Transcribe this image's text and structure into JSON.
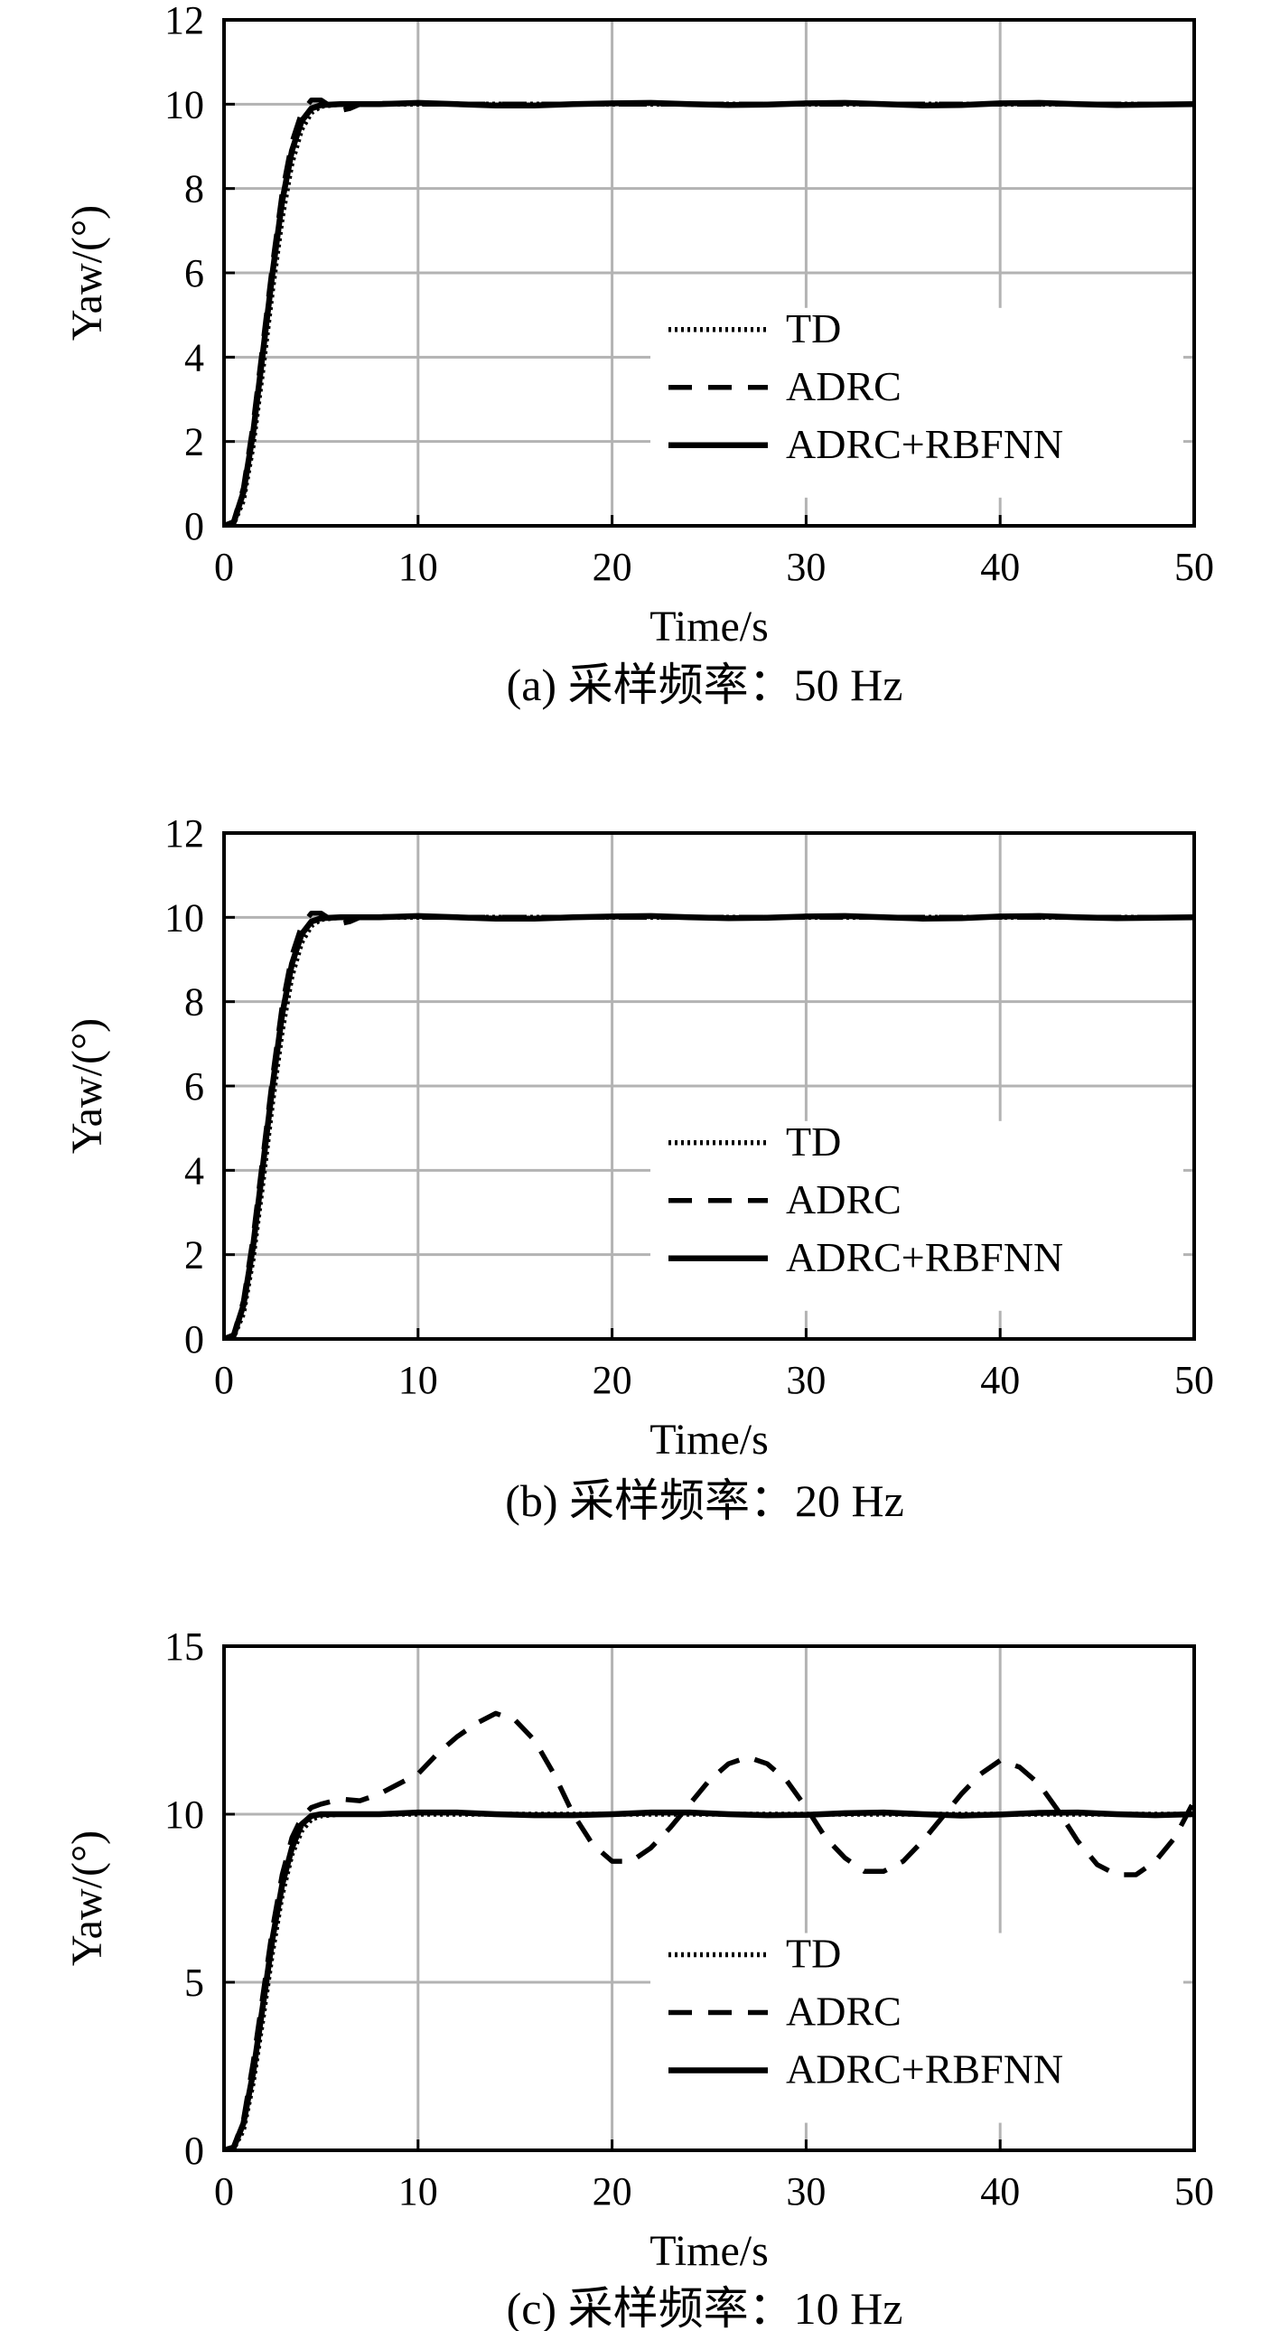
{
  "figure": {
    "legend": [
      "TD",
      "ADRC",
      "ADRC+RBFNN"
    ],
    "style": {
      "axis_color": "#000000",
      "grid_color": "#b3b3b3",
      "series_colors": {
        "td": "#000000",
        "adrc": "#000000",
        "adrc_rbfnn": "#000000"
      },
      "line_styles": {
        "td": "dotted",
        "adrc": "dashed",
        "adrc_rbfnn": "solid"
      }
    }
  },
  "chart_data": [
    {
      "type": "line",
      "caption": "(a) 采样频率：50 Hz",
      "xlabel": "Time/s",
      "ylabel": "Yaw/(°)",
      "xlim": [
        0,
        50
      ],
      "ylim": [
        0,
        12
      ],
      "xticks": [
        0,
        10,
        20,
        30,
        40,
        50
      ],
      "yticks": [
        0,
        2,
        4,
        6,
        8,
        10,
        12
      ],
      "grid": true,
      "legend_position": "bottom-right",
      "series": [
        {
          "name": "TD",
          "style": "dotted",
          "x": [
            0,
            0.5,
            1,
            1.5,
            2,
            2.5,
            3,
            3.5,
            4,
            4.5,
            5,
            6,
            8,
            10,
            15,
            20,
            25,
            30,
            35,
            40,
            45,
            50
          ],
          "y": [
            0,
            0.05,
            0.6,
            1.9,
            3.7,
            5.6,
            7.3,
            8.6,
            9.4,
            9.8,
            9.95,
            10.0,
            10.0,
            10.0,
            10.0,
            10.0,
            10.0,
            10.0,
            10.0,
            10.0,
            10.0,
            10.0
          ]
        },
        {
          "name": "ADRC",
          "style": "dashed",
          "x": [
            0,
            0.5,
            1,
            1.5,
            2,
            2.5,
            3,
            3.5,
            4,
            4.5,
            5,
            5.5,
            6,
            6.5,
            7,
            8,
            10,
            15,
            20,
            25,
            30,
            35,
            40,
            45,
            50
          ],
          "y": [
            0,
            0.1,
            0.9,
            2.4,
            4.3,
            6.2,
            7.9,
            9.1,
            9.8,
            10.1,
            10.1,
            9.95,
            9.85,
            9.9,
            10.0,
            10.02,
            10.0,
            10.0,
            10.0,
            10.0,
            10.0,
            10.0,
            10.0,
            10.0,
            10.0
          ]
        },
        {
          "name": "ADRC+RBFNN",
          "style": "solid",
          "x": [
            0,
            0.5,
            1,
            1.5,
            2,
            2.5,
            3,
            3.5,
            4,
            4.5,
            5,
            6,
            8,
            10,
            12,
            14,
            16,
            18,
            20,
            22,
            24,
            26,
            28,
            30,
            32,
            34,
            36,
            38,
            40,
            42,
            44,
            46,
            48,
            50
          ],
          "y": [
            0,
            0.08,
            0.8,
            2.2,
            4.1,
            6.0,
            7.7,
            8.9,
            9.6,
            9.9,
            9.98,
            10.0,
            10.0,
            10.03,
            10.0,
            9.97,
            9.97,
            10.0,
            10.02,
            10.03,
            10.0,
            9.98,
            9.99,
            10.02,
            10.03,
            10.0,
            9.97,
            9.98,
            10.02,
            10.03,
            10.0,
            9.98,
            9.99,
            10.0
          ]
        }
      ]
    },
    {
      "type": "line",
      "caption": "(b) 采样频率：20 Hz",
      "xlabel": "Time/s",
      "ylabel": "Yaw/(°)",
      "xlim": [
        0,
        50
      ],
      "ylim": [
        0,
        12
      ],
      "xticks": [
        0,
        10,
        20,
        30,
        40,
        50
      ],
      "yticks": [
        0,
        2,
        4,
        6,
        8,
        10,
        12
      ],
      "grid": true,
      "legend_position": "bottom-right",
      "series": [
        {
          "name": "TD",
          "style": "dotted",
          "x": [
            0,
            0.5,
            1,
            1.5,
            2,
            2.5,
            3,
            3.5,
            4,
            4.5,
            5,
            6,
            8,
            10,
            15,
            20,
            25,
            30,
            35,
            40,
            45,
            50
          ],
          "y": [
            0,
            0.05,
            0.6,
            1.9,
            3.7,
            5.6,
            7.3,
            8.6,
            9.4,
            9.8,
            9.95,
            10.0,
            10.0,
            10.0,
            10.0,
            10.0,
            10.0,
            10.0,
            10.0,
            10.0,
            10.0,
            10.0
          ]
        },
        {
          "name": "ADRC",
          "style": "dashed",
          "x": [
            0,
            0.5,
            1,
            1.5,
            2,
            2.5,
            3,
            3.5,
            4,
            4.5,
            5,
            5.5,
            6,
            6.5,
            7,
            8,
            10,
            15,
            20,
            25,
            30,
            35,
            40,
            45,
            50
          ],
          "y": [
            0,
            0.1,
            0.9,
            2.4,
            4.3,
            6.2,
            7.9,
            9.1,
            9.8,
            10.1,
            10.1,
            9.95,
            9.85,
            9.9,
            10.0,
            10.02,
            10.0,
            10.0,
            10.0,
            10.0,
            10.0,
            10.0,
            10.0,
            10.0,
            10.0
          ]
        },
        {
          "name": "ADRC+RBFNN",
          "style": "solid",
          "x": [
            0,
            0.5,
            1,
            1.5,
            2,
            2.5,
            3,
            3.5,
            4,
            4.5,
            5,
            6,
            8,
            10,
            12,
            14,
            16,
            18,
            20,
            22,
            24,
            26,
            28,
            30,
            32,
            34,
            36,
            38,
            40,
            42,
            44,
            46,
            48,
            50
          ],
          "y": [
            0,
            0.08,
            0.8,
            2.2,
            4.1,
            6.0,
            7.7,
            8.9,
            9.6,
            9.9,
            9.98,
            10.0,
            10.0,
            10.03,
            10.0,
            9.97,
            9.97,
            10.0,
            10.02,
            10.03,
            10.0,
            9.98,
            9.99,
            10.02,
            10.03,
            10.0,
            9.97,
            9.98,
            10.02,
            10.03,
            10.0,
            9.98,
            9.99,
            10.0
          ]
        }
      ]
    },
    {
      "type": "line",
      "caption": "(c) 采样频率：10 Hz",
      "xlabel": "Time/s",
      "ylabel": "Yaw/(°)",
      "xlim": [
        0,
        50
      ],
      "ylim": [
        0,
        15
      ],
      "xticks": [
        0,
        10,
        20,
        30,
        40,
        50
      ],
      "yticks": [
        0,
        5,
        10,
        15
      ],
      "grid": true,
      "legend_position": "bottom-right",
      "series": [
        {
          "name": "TD",
          "style": "dotted",
          "x": [
            0,
            0.5,
            1,
            1.5,
            2,
            2.5,
            3,
            3.5,
            4,
            4.5,
            5,
            6,
            8,
            10,
            15,
            20,
            25,
            30,
            35,
            40,
            45,
            50
          ],
          "y": [
            0,
            0.05,
            0.6,
            2.0,
            3.9,
            5.9,
            7.6,
            8.8,
            9.5,
            9.85,
            9.95,
            10.0,
            10.0,
            10.0,
            10.0,
            10.0,
            10.0,
            10.0,
            10.0,
            10.0,
            10.0,
            10.0
          ]
        },
        {
          "name": "ADRC",
          "style": "dashed",
          "x": [
            0,
            0.5,
            1,
            1.5,
            2,
            2.5,
            3,
            3.5,
            4,
            4.5,
            5,
            6,
            7,
            8,
            9,
            10,
            11,
            12,
            13,
            14,
            15,
            16,
            17,
            18,
            19,
            20,
            21,
            22,
            23,
            24,
            25,
            26,
            27,
            28,
            29,
            30,
            31,
            32,
            33,
            34,
            35,
            36,
            37,
            38,
            39,
            40,
            41,
            42,
            43,
            44,
            45,
            46,
            47,
            48,
            49,
            50
          ],
          "y": [
            0,
            0.1,
            0.9,
            2.6,
            4.6,
            6.6,
            8.2,
            9.3,
            9.9,
            10.2,
            10.3,
            10.45,
            10.4,
            10.6,
            10.9,
            11.2,
            11.8,
            12.3,
            12.7,
            13.0,
            12.8,
            12.2,
            11.2,
            10.0,
            9.1,
            8.6,
            8.6,
            9.0,
            9.6,
            10.3,
            11.0,
            11.5,
            11.7,
            11.5,
            11.0,
            10.2,
            9.3,
            8.7,
            8.3,
            8.3,
            8.6,
            9.2,
            9.9,
            10.6,
            11.2,
            11.6,
            11.4,
            10.9,
            10.1,
            9.2,
            8.5,
            8.2,
            8.2,
            8.6,
            9.3,
            10.4
          ]
        },
        {
          "name": "ADRC+RBFNN",
          "style": "solid",
          "x": [
            0,
            0.5,
            1,
            1.5,
            2,
            2.5,
            3,
            3.5,
            4,
            4.5,
            5,
            6,
            8,
            10,
            12,
            14,
            16,
            18,
            20,
            22,
            24,
            26,
            28,
            30,
            32,
            34,
            36,
            38,
            40,
            42,
            44,
            46,
            48,
            50
          ],
          "y": [
            0,
            0.08,
            0.8,
            2.3,
            4.3,
            6.3,
            7.9,
            9.0,
            9.7,
            9.95,
            10.0,
            10.0,
            10.0,
            10.05,
            10.05,
            10.0,
            9.97,
            9.97,
            10.0,
            10.05,
            10.05,
            10.0,
            9.97,
            9.98,
            10.03,
            10.05,
            10.0,
            9.96,
            9.99,
            10.04,
            10.05,
            10.0,
            9.97,
            10.0
          ]
        }
      ]
    }
  ]
}
